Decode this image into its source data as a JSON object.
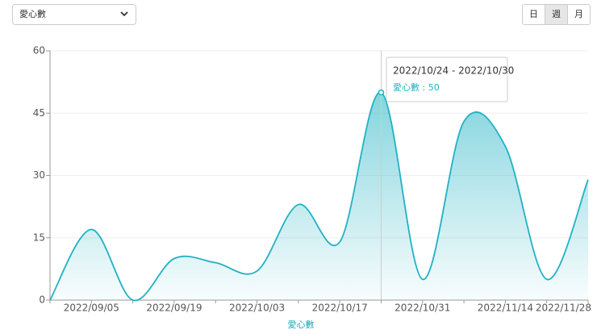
{
  "controls": {
    "metric": "愛心數",
    "periods": [
      "日",
      "週",
      "月"
    ],
    "selected_period": 1
  },
  "chart_data": {
    "type": "area",
    "x_label": "愛心數",
    "categories": [
      null,
      "2022/09/05",
      null,
      "2022/09/19",
      null,
      "2022/10/03",
      null,
      "2022/10/17",
      null,
      "2022/10/31",
      null,
      "2022/11/14",
      null,
      "2022/11/28"
    ],
    "series": [
      {
        "name": "愛心數",
        "color": "#1fb2c3",
        "values": [
          0,
          17,
          0,
          10,
          9,
          7,
          23,
          14,
          50,
          5,
          43,
          37,
          5,
          29
        ]
      }
    ],
    "ylim": [
      0,
      60
    ],
    "yticks": [
      0,
      15,
      30,
      45,
      60
    ],
    "grid": true,
    "tooltip": {
      "index": 8,
      "title": "2022/10/24 - 2022/10/30",
      "text": "愛心數 : 50"
    }
  }
}
